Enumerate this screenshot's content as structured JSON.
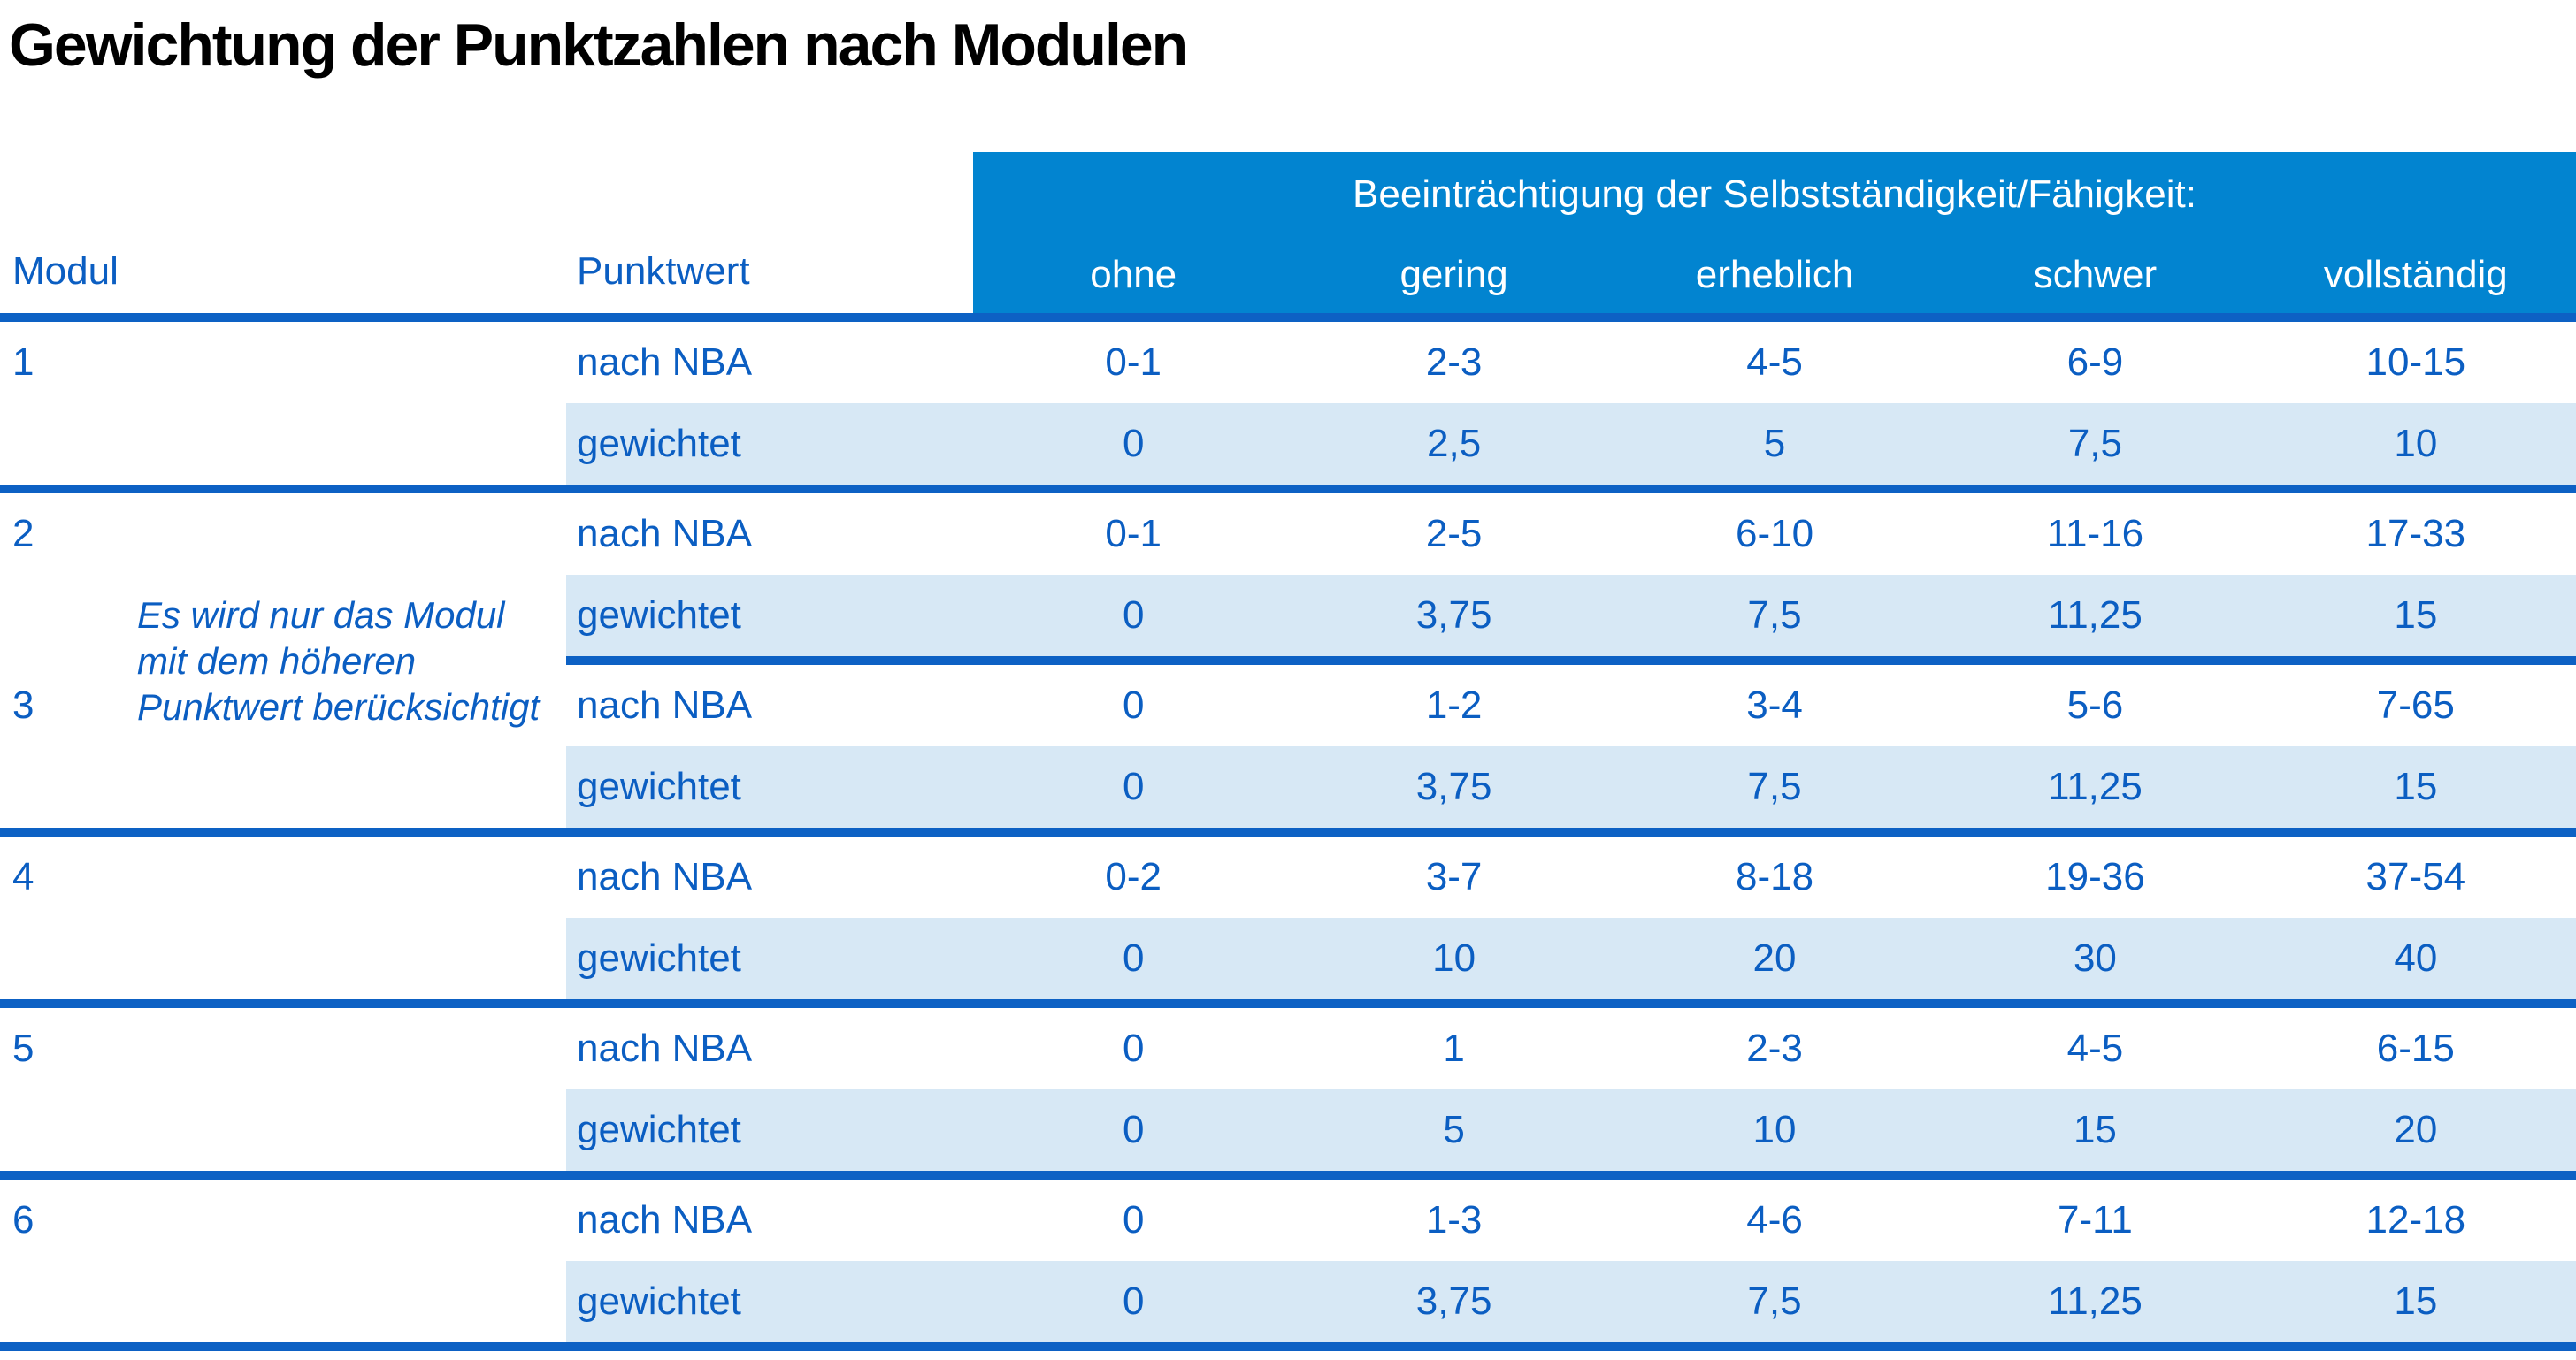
{
  "title": "Gewichtung der Punktzahlen nach Modulen",
  "colors": {
    "header_band": "#0284d0",
    "separator": "#0d61c4",
    "row_highlight": "#d7e8f5",
    "text_blue": "#0b5ec2",
    "title_text": "#000000",
    "background": "#ffffff"
  },
  "table": {
    "headers": {
      "modul": "Modul",
      "punktwert": "Punktwert"
    },
    "band_title": "Beeinträchtigung der Selbstständigkeit/Fähigkeit:",
    "severity_levels": [
      "ohne",
      "gering",
      "erheblich",
      "schwer",
      "vollständig"
    ],
    "row_labels": {
      "nba": "nach NBA",
      "gew": "gewichtet"
    },
    "note_lines": [
      "Es wird nur das Modul",
      "mit dem höheren",
      "Punktwert berücksichtigt"
    ],
    "modules": [
      {
        "nr": "1",
        "nba": [
          "0-1",
          "2-3",
          "4-5",
          "6-9",
          "10-15"
        ],
        "gew": [
          "0",
          "2,5",
          "5",
          "7,5",
          "10"
        ]
      },
      {
        "nr": "2",
        "nba": [
          "0-1",
          "2-5",
          "6-10",
          "11-16",
          "17-33"
        ],
        "gew": [
          "0",
          "3,75",
          "7,5",
          "11,25",
          "15"
        ]
      },
      {
        "nr": "3",
        "nba": [
          "0",
          "1-2",
          "3-4",
          "5-6",
          "7-65"
        ],
        "gew": [
          "0",
          "3,75",
          "7,5",
          "11,25",
          "15"
        ]
      },
      {
        "nr": "4",
        "nba": [
          "0-2",
          "3-7",
          "8-18",
          "19-36",
          "37-54"
        ],
        "gew": [
          "0",
          "10",
          "20",
          "30",
          "40"
        ]
      },
      {
        "nr": "5",
        "nba": [
          "0",
          "1",
          "2-3",
          "4-5",
          "6-15"
        ],
        "gew": [
          "0",
          "5",
          "10",
          "15",
          "20"
        ]
      },
      {
        "nr": "6",
        "nba": [
          "0",
          "1-3",
          "4-6",
          "7-11",
          "12-18"
        ],
        "gew": [
          "0",
          "3,75",
          "7,5",
          "11,25",
          "15"
        ]
      }
    ]
  }
}
